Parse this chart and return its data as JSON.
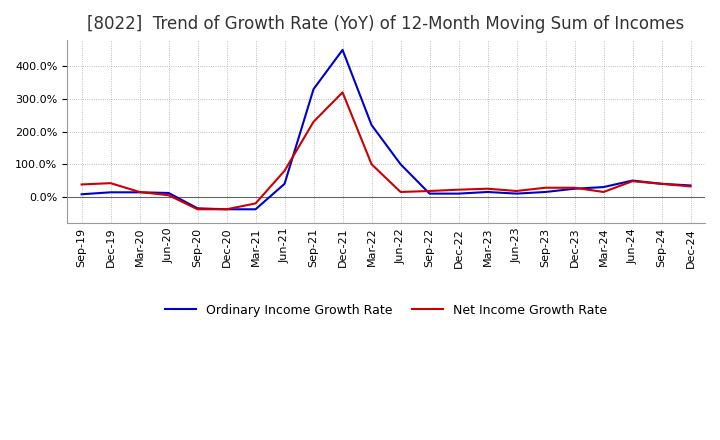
{
  "title": "[8022]  Trend of Growth Rate (YoY) of 12-Month Moving Sum of Incomes",
  "title_fontsize": 12,
  "background_color": "#ffffff",
  "plot_bg_color": "#ffffff",
  "grid_color": "#aaaaaa",
  "line1_color": "#0000cc",
  "line2_color": "#cc0000",
  "line1_label": "Ordinary Income Growth Rate",
  "line2_label": "Net Income Growth Rate",
  "x_labels": [
    "Sep-19",
    "Dec-19",
    "Mar-20",
    "Jun-20",
    "Sep-20",
    "Dec-20",
    "Mar-21",
    "Jun-21",
    "Sep-21",
    "Dec-21",
    "Mar-22",
    "Jun-22",
    "Sep-22",
    "Dec-22",
    "Mar-23",
    "Jun-23",
    "Sep-23",
    "Dec-23",
    "Mar-24",
    "Jun-24",
    "Sep-24",
    "Dec-24"
  ],
  "ordinary_income": [
    8.0,
    14.0,
    14.0,
    12.0,
    -35.0,
    -38.0,
    -38.0,
    40.0,
    330.0,
    450.0,
    220.0,
    100.0,
    10.0,
    10.0,
    15.0,
    10.0,
    15.0,
    25.0,
    30.0,
    50.0,
    40.0,
    35.0
  ],
  "net_income": [
    38.0,
    42.0,
    15.0,
    5.0,
    -38.0,
    -38.0,
    -20.0,
    80.0,
    230.0,
    320.0,
    100.0,
    15.0,
    18.0,
    22.0,
    25.0,
    18.0,
    28.0,
    28.0,
    15.0,
    48.0,
    40.0,
    32.0
  ],
  "ylim_min": -80,
  "ylim_max": 480,
  "yticks": [
    0,
    100,
    200,
    300,
    400
  ],
  "line_width": 1.5,
  "tick_fontsize": 8,
  "legend_fontsize": 9
}
